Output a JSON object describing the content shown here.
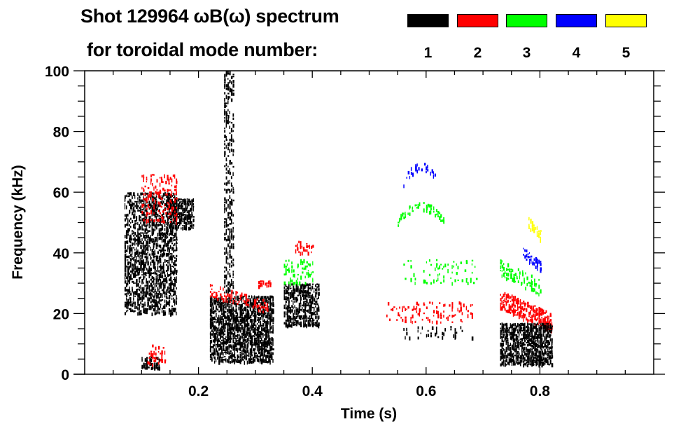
{
  "chart_data": {
    "type": "heatmap",
    "title_line1": "Shot 129964 ωB(ω) spectrum",
    "title_line2": "for toroidal mode number:",
    "xlabel": "Time (s)",
    "ylabel": "Frequency (kHz)",
    "xlim": [
      0.0,
      1.0
    ],
    "ylim": [
      0,
      100
    ],
    "x_ticks": [
      0.2,
      0.4,
      0.6,
      0.8
    ],
    "x_tick_labels": [
      "0.2",
      "0.4",
      "0.6",
      "0.8"
    ],
    "y_ticks": [
      0,
      20,
      40,
      60,
      80,
      100
    ],
    "y_tick_labels": [
      "0",
      "20",
      "40",
      "60",
      "80",
      "100"
    ],
    "x_minor_step": 0.05,
    "y_minor_step": 5,
    "legend": {
      "placement": "top",
      "entries": [
        {
          "mode": "1",
          "color": "#000000"
        },
        {
          "mode": "2",
          "color": "#ff0000"
        },
        {
          "mode": "3",
          "color": "#00ff00"
        },
        {
          "mode": "4",
          "color": "#0000ff"
        },
        {
          "mode": "5",
          "color": "#ffff00"
        }
      ]
    },
    "features": [
      {
        "mode": "1",
        "t": [
          0.07,
          0.16
        ],
        "f": [
          20,
          60
        ],
        "density": 0.55,
        "note": "broadband n=1 burst"
      },
      {
        "mode": "1",
        "t": [
          0.15,
          0.19
        ],
        "f": [
          48,
          58
        ],
        "density": 0.75
      },
      {
        "mode": "1",
        "t": [
          0.1,
          0.13
        ],
        "f": [
          2,
          6
        ],
        "density": 0.6
      },
      {
        "mode": "2",
        "t": [
          0.1,
          0.16
        ],
        "f": [
          50,
          66
        ],
        "density": 0.25
      },
      {
        "mode": "2",
        "t": [
          0.11,
          0.14
        ],
        "f": [
          3,
          10
        ],
        "density": 0.25
      },
      {
        "mode": "1",
        "t": [
          0.22,
          0.33
        ],
        "f": [
          4,
          26
        ],
        "density": 0.7
      },
      {
        "mode": "1",
        "t": [
          0.245,
          0.26
        ],
        "f": [
          26,
          100
        ],
        "density": 0.35
      },
      {
        "mode": "2",
        "t": [
          0.22,
          0.32
        ],
        "f": [
          20,
          30
        ],
        "density": 0.3,
        "trend": "falling"
      },
      {
        "mode": "2",
        "t": [
          0.305,
          0.325
        ],
        "f": [
          29,
          31
        ],
        "density": 0.8
      },
      {
        "mode": "1",
        "t": [
          0.35,
          0.41
        ],
        "f": [
          16,
          30
        ],
        "density": 0.7
      },
      {
        "mode": "2",
        "t": [
          0.37,
          0.4
        ],
        "f": [
          40,
          44
        ],
        "density": 0.3
      },
      {
        "mode": "3",
        "t": [
          0.35,
          0.4
        ],
        "f": [
          30,
          38
        ],
        "density": 0.2
      },
      {
        "mode": "4",
        "t": [
          0.56,
          0.62
        ],
        "f": [
          62,
          70
        ],
        "density": 0.25,
        "trend": "arch"
      },
      {
        "mode": "3",
        "t": [
          0.55,
          0.63
        ],
        "f": [
          49,
          57
        ],
        "density": 0.45,
        "trend": "arch"
      },
      {
        "mode": "3",
        "t": [
          0.56,
          0.69
        ],
        "f": [
          30,
          38
        ],
        "density": 0.12
      },
      {
        "mode": "2",
        "t": [
          0.53,
          0.68
        ],
        "f": [
          17,
          24
        ],
        "density": 0.15
      },
      {
        "mode": "1",
        "t": [
          0.56,
          0.68
        ],
        "f": [
          12,
          16
        ],
        "density": 0.1
      },
      {
        "mode": "5",
        "t": [
          0.78,
          0.8
        ],
        "f": [
          44,
          52
        ],
        "density": 0.5,
        "trend": "falling"
      },
      {
        "mode": "4",
        "t": [
          0.77,
          0.8
        ],
        "f": [
          34,
          42
        ],
        "density": 0.6,
        "trend": "falling"
      },
      {
        "mode": "3",
        "t": [
          0.73,
          0.8
        ],
        "f": [
          26,
          38
        ],
        "density": 0.3,
        "trend": "falling"
      },
      {
        "mode": "2",
        "t": [
          0.73,
          0.82
        ],
        "f": [
          14,
          28
        ],
        "density": 0.6,
        "trend": "falling"
      },
      {
        "mode": "1",
        "t": [
          0.73,
          0.82
        ],
        "f": [
          3,
          17
        ],
        "density": 0.75
      }
    ]
  }
}
